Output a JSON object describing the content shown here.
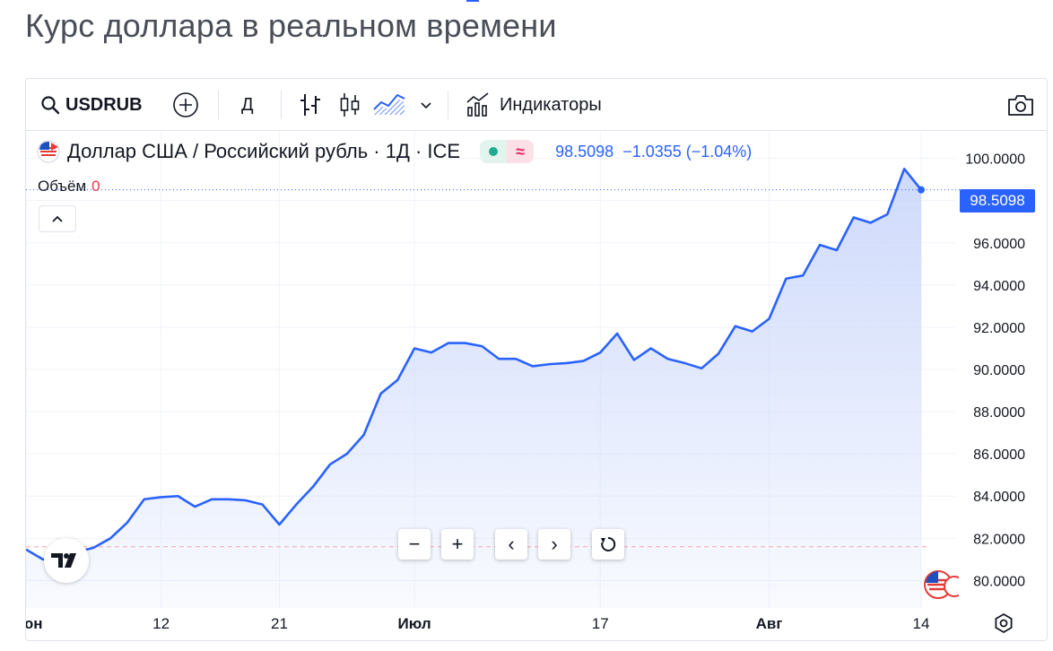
{
  "page": {
    "title": "Курс доллара в реальном времени"
  },
  "toolbar": {
    "symbol": "USDRUB",
    "interval": "Д",
    "indicators_label": "Индикаторы",
    "icons": [
      "search-icon",
      "plus-circle-icon",
      "bar-chart-icon",
      "candles-icon",
      "area-chart-icon",
      "chevron-down-icon",
      "indicators-icon",
      "camera-icon"
    ]
  },
  "legend": {
    "title": "Доллар США / Российский рубль · 1Д · ICE",
    "price": "98.5098",
    "change": "−1.0355 (−1.04%)",
    "volume_label": "Объём",
    "volume_value": "0"
  },
  "colors": {
    "line": "#2962ff",
    "area_top": "#c9d6fb",
    "accent": "#2962ff",
    "down": "#f23645",
    "up": "#22ab94"
  },
  "chart_data": {
    "type": "area",
    "y_ticks": [
      "80.0000",
      "82.0000",
      "84.0000",
      "86.0000",
      "88.0000",
      "90.0000",
      "92.0000",
      "94.0000",
      "96.0000",
      "98.0000",
      "100.0000"
    ],
    "x_ticks": [
      {
        "label": "Июн",
        "index": 0,
        "bold": true
      },
      {
        "label": "12",
        "index": 8,
        "bold": false
      },
      {
        "label": "21",
        "index": 15,
        "bold": false
      },
      {
        "label": "Июл",
        "index": 23,
        "bold": true
      },
      {
        "label": "17",
        "index": 34,
        "bold": false
      },
      {
        "label": "Авг",
        "index": 44,
        "bold": true
      },
      {
        "label": "14",
        "index": 53,
        "bold": false
      }
    ],
    "ylim": [
      78.7,
      101.3
    ],
    "last_price": 98.5098,
    "reference_level": 81.6,
    "values": [
      81.47,
      81.0,
      81.02,
      81.35,
      81.55,
      82.0,
      82.75,
      83.85,
      83.95,
      84.0,
      83.5,
      83.85,
      83.85,
      83.8,
      83.6,
      82.65,
      83.6,
      84.45,
      85.5,
      86.0,
      86.9,
      88.85,
      89.5,
      91.0,
      90.8,
      91.25,
      91.25,
      91.1,
      90.5,
      90.5,
      90.15,
      90.25,
      90.3,
      90.4,
      90.8,
      91.7,
      90.45,
      91.0,
      90.5,
      90.3,
      90.05,
      90.75,
      92.05,
      91.8,
      92.4,
      94.3,
      94.45,
      95.9,
      95.65,
      97.2,
      96.95,
      97.35,
      99.5,
      98.5098
    ],
    "xlabel": "",
    "ylabel": ""
  },
  "nav": {
    "zoom_out": "−",
    "zoom_in": "+",
    "back": "‹",
    "forward": "›"
  }
}
